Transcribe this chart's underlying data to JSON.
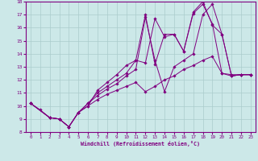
{
  "xlabel": "Windchill (Refroidissement éolien,°C)",
  "xlim": [
    -0.5,
    23.5
  ],
  "ylim": [
    8,
    18
  ],
  "xticks": [
    0,
    1,
    2,
    3,
    4,
    5,
    6,
    7,
    8,
    9,
    10,
    11,
    12,
    13,
    14,
    15,
    16,
    17,
    18,
    19,
    20,
    21,
    22,
    23
  ],
  "yticks": [
    8,
    9,
    10,
    11,
    12,
    13,
    14,
    15,
    16,
    17,
    18
  ],
  "bg_color": "#cce8e8",
  "line_color": "#800080",
  "grid_color": "#aacccc",
  "lines": [
    {
      "x": [
        0,
        1,
        2,
        3,
        4,
        5,
        6,
        7,
        8,
        9,
        10,
        11,
        12,
        13,
        14,
        15,
        16,
        17,
        18,
        19,
        20,
        21,
        22,
        23
      ],
      "y": [
        10.2,
        9.7,
        9.1,
        9.0,
        8.4,
        9.5,
        10.0,
        10.5,
        10.9,
        11.2,
        11.5,
        11.8,
        11.1,
        11.5,
        12.0,
        12.3,
        12.8,
        13.1,
        13.5,
        13.8,
        12.5,
        12.4,
        12.4,
        12.4
      ]
    },
    {
      "x": [
        0,
        2,
        3,
        4,
        5,
        6,
        7,
        8,
        9,
        10,
        11,
        12,
        13,
        14,
        15,
        16,
        17,
        18,
        19,
        20,
        21,
        22,
        23
      ],
      "y": [
        10.2,
        9.1,
        9.0,
        8.4,
        9.5,
        10.2,
        10.8,
        11.3,
        11.7,
        12.3,
        12.8,
        16.8,
        13.5,
        11.1,
        13.0,
        13.5,
        14.0,
        17.0,
        17.8,
        15.5,
        12.3,
        12.4,
        12.4
      ]
    },
    {
      "x": [
        0,
        2,
        3,
        4,
        5,
        6,
        7,
        8,
        9,
        10,
        11,
        12,
        13,
        14,
        15,
        16,
        17,
        18,
        19,
        20,
        21,
        22,
        23
      ],
      "y": [
        10.2,
        9.1,
        9.0,
        8.4,
        9.5,
        10.2,
        11.0,
        11.5,
        12.0,
        12.5,
        13.5,
        17.0,
        13.2,
        15.5,
        15.5,
        14.2,
        17.2,
        18.0,
        16.2,
        15.5,
        12.3,
        12.4,
        12.4
      ]
    },
    {
      "x": [
        0,
        2,
        3,
        4,
        5,
        6,
        7,
        8,
        9,
        10,
        11,
        12,
        13,
        14,
        15,
        16,
        17,
        18,
        19,
        20,
        21,
        22,
        23
      ],
      "y": [
        10.2,
        9.1,
        9.0,
        8.4,
        9.5,
        10.0,
        11.2,
        11.8,
        12.4,
        13.1,
        13.5,
        13.3,
        16.7,
        15.3,
        15.5,
        14.2,
        17.1,
        17.8,
        16.3,
        12.5,
        12.3,
        12.4,
        12.4
      ]
    }
  ]
}
